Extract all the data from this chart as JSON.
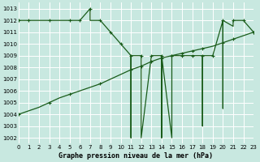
{
  "background_color": "#c8e8e0",
  "grid_color": "#ffffff",
  "line_color": "#1a5c1a",
  "title": "Graphe pression niveau de la mer (hPa)",
  "xlim": [
    0,
    23
  ],
  "ylim": [
    1001.5,
    1013.5
  ],
  "yticks": [
    1002,
    1003,
    1004,
    1005,
    1006,
    1007,
    1008,
    1009,
    1010,
    1011,
    1012,
    1013
  ],
  "xticks": [
    0,
    1,
    2,
    3,
    4,
    5,
    6,
    7,
    8,
    9,
    10,
    11,
    12,
    13,
    14,
    15,
    16,
    17,
    18,
    19,
    20,
    21,
    22,
    23
  ],
  "main_x": [
    0,
    1,
    2,
    3,
    4,
    5,
    6,
    7,
    7,
    8,
    9,
    10,
    11,
    11,
    11,
    12,
    12,
    13,
    14,
    14,
    14,
    15,
    15,
    15,
    16,
    17,
    18,
    18,
    18,
    19,
    20,
    20,
    20,
    21,
    21,
    22,
    23
  ],
  "main_y": [
    1012,
    1012,
    1012,
    1012,
    1012,
    1012,
    1012,
    1013,
    1012,
    1012,
    1011,
    1010,
    1009,
    1002,
    1009,
    1009,
    1002,
    1009,
    1009,
    1002,
    1009,
    1002,
    1009,
    1009,
    1009,
    1009,
    1009,
    1003,
    1009,
    1009,
    1012,
    1004.5,
    1012,
    1011.5,
    1012,
    1012,
    1011
  ],
  "mk_main_x": [
    0,
    1,
    3,
    5,
    6,
    7,
    8,
    9,
    10,
    11,
    12,
    13,
    14,
    15,
    16,
    17,
    18,
    19,
    20,
    21,
    22,
    23
  ],
  "mk_main_y": [
    1012,
    1012,
    1012,
    1012,
    1012,
    1013,
    1012,
    1011,
    1010,
    1009,
    1009,
    1009,
    1009,
    1009,
    1009,
    1009,
    1009,
    1009,
    1012,
    1012,
    1012,
    1011
  ],
  "diag_x": [
    0,
    1,
    2,
    3,
    4,
    5,
    6,
    7,
    8,
    9,
    10,
    11,
    12,
    13,
    14,
    15,
    16,
    17,
    18,
    19,
    20,
    21,
    22,
    23
  ],
  "diag_y": [
    1004,
    1004.3,
    1004.6,
    1005,
    1005.4,
    1005.7,
    1006.0,
    1006.3,
    1006.6,
    1007.0,
    1007.4,
    1007.8,
    1008.1,
    1008.5,
    1008.8,
    1009.0,
    1009.2,
    1009.4,
    1009.6,
    1009.8,
    1010.1,
    1010.4,
    1010.7,
    1011.0
  ],
  "mk_diag_x": [
    0,
    3,
    5,
    8,
    11,
    12,
    13,
    14,
    15,
    16,
    17,
    18,
    20,
    21,
    23
  ],
  "mk_diag_y": [
    1004,
    1005,
    1005.7,
    1006.6,
    1007.8,
    1008.1,
    1008.5,
    1008.8,
    1009.0,
    1009.2,
    1009.4,
    1009.6,
    1010.1,
    1010.4,
    1011.0
  ]
}
